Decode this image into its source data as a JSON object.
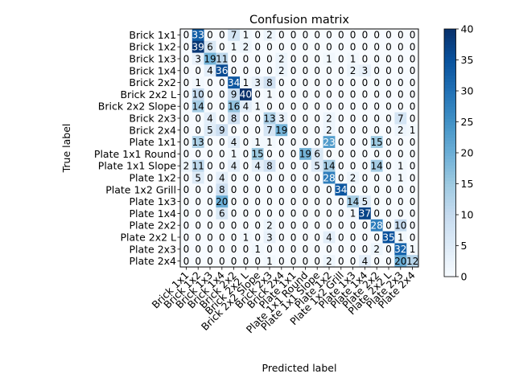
{
  "chart_data": {
    "type": "heatmap",
    "title": "Confusion matrix",
    "xlabel": "Predicted label",
    "ylabel": "True label",
    "labels": [
      "Brick 1x1",
      "Brick 1x2",
      "Brick 1x3",
      "Brick 1x4",
      "Brick 2x2",
      "Brick 2x2 L",
      "Brick 2x2 Slope",
      "Brick 2x3",
      "Brick 2x4",
      "Plate 1x1",
      "Plate 1x1 Round",
      "Plate 1x1 Slope",
      "Plate 1x2",
      "Plate 1x2 Grill",
      "Plate 1x3",
      "Plate 1x4",
      "Plate 2x2",
      "Plate 2x2 L",
      "Plate 2x3",
      "Plate 2x4"
    ],
    "matrix": [
      [
        0,
        33,
        0,
        0,
        7,
        1,
        0,
        2,
        0,
        0,
        0,
        0,
        0,
        0,
        0,
        0,
        0,
        0,
        0,
        0
      ],
      [
        0,
        39,
        6,
        0,
        1,
        2,
        0,
        0,
        0,
        0,
        0,
        0,
        0,
        0,
        0,
        0,
        0,
        0,
        0,
        0
      ],
      [
        0,
        3,
        19,
        11,
        0,
        0,
        0,
        0,
        2,
        0,
        0,
        0,
        1,
        0,
        1,
        0,
        0,
        0,
        0,
        0
      ],
      [
        0,
        0,
        4,
        36,
        0,
        0,
        0,
        0,
        2,
        0,
        0,
        0,
        0,
        0,
        2,
        3,
        0,
        0,
        0,
        0
      ],
      [
        0,
        1,
        0,
        0,
        34,
        1,
        3,
        8,
        0,
        0,
        0,
        0,
        0,
        0,
        0,
        0,
        0,
        0,
        0,
        0
      ],
      [
        0,
        10,
        0,
        0,
        9,
        40,
        0,
        1,
        0,
        0,
        0,
        0,
        0,
        0,
        0,
        0,
        0,
        0,
        0,
        0
      ],
      [
        0,
        14,
        0,
        0,
        16,
        4,
        1,
        0,
        0,
        0,
        0,
        0,
        0,
        0,
        0,
        0,
        0,
        0,
        0,
        0
      ],
      [
        0,
        0,
        4,
        0,
        8,
        0,
        0,
        13,
        3,
        0,
        0,
        0,
        2,
        0,
        0,
        0,
        0,
        0,
        7,
        0
      ],
      [
        0,
        0,
        5,
        9,
        0,
        0,
        0,
        7,
        19,
        0,
        0,
        0,
        2,
        0,
        0,
        0,
        0,
        0,
        2,
        1
      ],
      [
        0,
        13,
        0,
        0,
        4,
        0,
        1,
        1,
        0,
        0,
        0,
        0,
        23,
        0,
        0,
        0,
        15,
        0,
        0,
        0
      ],
      [
        0,
        0,
        0,
        0,
        1,
        0,
        15,
        0,
        0,
        0,
        19,
        6,
        0,
        0,
        0,
        0,
        0,
        0,
        0,
        0
      ],
      [
        2,
        11,
        0,
        0,
        4,
        0,
        4,
        8,
        0,
        0,
        0,
        5,
        14,
        0,
        0,
        0,
        14,
        0,
        1,
        0
      ],
      [
        0,
        5,
        0,
        4,
        0,
        0,
        0,
        0,
        0,
        0,
        0,
        0,
        28,
        0,
        2,
        0,
        0,
        0,
        1,
        0
      ],
      [
        0,
        0,
        0,
        8,
        0,
        0,
        0,
        0,
        0,
        0,
        0,
        0,
        0,
        34,
        0,
        0,
        0,
        0,
        0,
        0
      ],
      [
        0,
        0,
        0,
        20,
        0,
        0,
        0,
        0,
        0,
        0,
        0,
        0,
        0,
        0,
        14,
        5,
        0,
        0,
        0,
        0
      ],
      [
        0,
        0,
        0,
        6,
        0,
        0,
        0,
        0,
        0,
        0,
        0,
        0,
        0,
        0,
        1,
        37,
        0,
        0,
        0,
        0
      ],
      [
        0,
        0,
        0,
        0,
        0,
        0,
        0,
        2,
        0,
        0,
        0,
        0,
        0,
        0,
        0,
        0,
        28,
        0,
        10,
        0
      ],
      [
        0,
        0,
        0,
        0,
        0,
        1,
        0,
        3,
        0,
        0,
        0,
        0,
        4,
        0,
        0,
        0,
        0,
        35,
        1,
        0
      ],
      [
        0,
        0,
        0,
        0,
        0,
        0,
        1,
        0,
        0,
        0,
        0,
        0,
        0,
        0,
        0,
        0,
        2,
        0,
        32,
        1
      ],
      [
        0,
        0,
        0,
        0,
        0,
        0,
        0,
        1,
        0,
        0,
        0,
        0,
        2,
        0,
        0,
        4,
        0,
        0,
        20,
        12
      ]
    ],
    "colormap": "Blues",
    "vmin": 0,
    "vmax": 40,
    "colorbar_ticks": [
      0,
      5,
      10,
      15,
      20,
      25,
      30,
      35,
      40
    ],
    "grid": false
  }
}
